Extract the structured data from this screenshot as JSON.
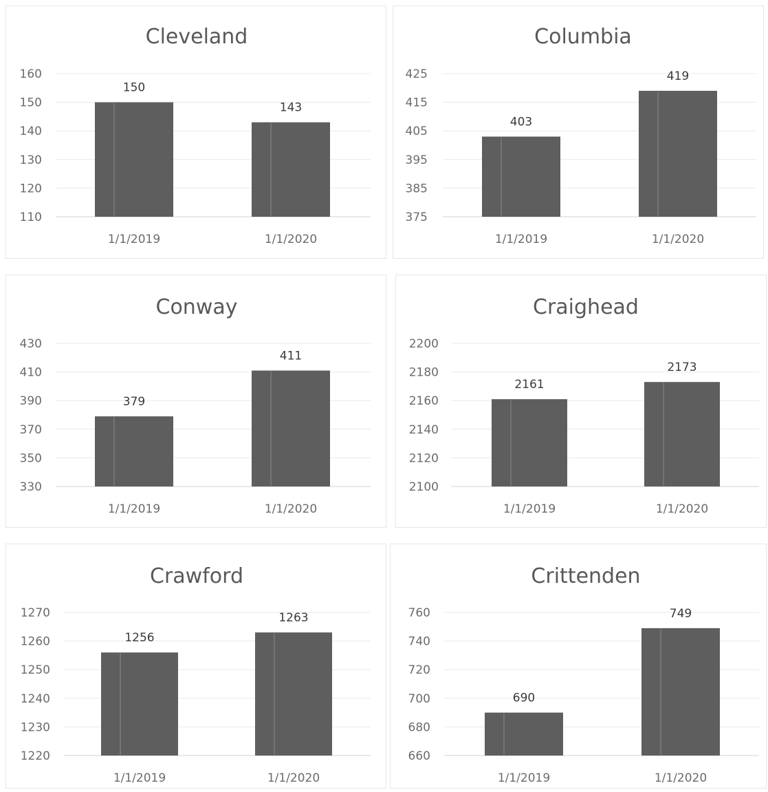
{
  "chart_data": [
    {
      "type": "bar",
      "title": "Cleveland",
      "categories": [
        "1/1/2019",
        "1/1/2020"
      ],
      "values": [
        150,
        143
      ],
      "ylim": [
        110,
        160
      ],
      "yticks": [
        110,
        120,
        130,
        140,
        150,
        160
      ],
      "grid": true,
      "legend": "none"
    },
    {
      "type": "bar",
      "title": "Columbia",
      "categories": [
        "1/1/2019",
        "1/1/2020"
      ],
      "values": [
        403,
        419
      ],
      "ylim": [
        375,
        425
      ],
      "yticks": [
        375,
        385,
        395,
        405,
        415,
        425
      ],
      "grid": true,
      "legend": "none"
    },
    {
      "type": "bar",
      "title": "Conway",
      "categories": [
        "1/1/2019",
        "1/1/2020"
      ],
      "values": [
        379,
        411
      ],
      "ylim": [
        330,
        430
      ],
      "yticks": [
        330,
        350,
        370,
        390,
        410,
        430
      ],
      "grid": true,
      "legend": "none"
    },
    {
      "type": "bar",
      "title": "Craighead",
      "categories": [
        "1/1/2019",
        "1/1/2020"
      ],
      "values": [
        2161,
        2173
      ],
      "ylim": [
        2100,
        2200
      ],
      "yticks": [
        2100,
        2120,
        2140,
        2160,
        2180,
        2200
      ],
      "grid": true,
      "legend": "none"
    },
    {
      "type": "bar",
      "title": "Crawford",
      "categories": [
        "1/1/2019",
        "1/1/2020"
      ],
      "values": [
        1256,
        1263
      ],
      "ylim": [
        1220,
        1270
      ],
      "yticks": [
        1220,
        1230,
        1240,
        1250,
        1260,
        1270
      ],
      "grid": true,
      "legend": "none"
    },
    {
      "type": "bar",
      "title": "Crittenden",
      "categories": [
        "1/1/2019",
        "1/1/2020"
      ],
      "values": [
        690,
        749
      ],
      "ylim": [
        660,
        760
      ],
      "yticks": [
        660,
        680,
        700,
        720,
        740,
        760
      ],
      "grid": true,
      "legend": "none"
    }
  ],
  "colors": {
    "bar": "#5e5e5e",
    "title": "#595959",
    "tick": "#6b6b6b",
    "data_label": "#3a3a3a",
    "grid": "#e8e8e8"
  }
}
